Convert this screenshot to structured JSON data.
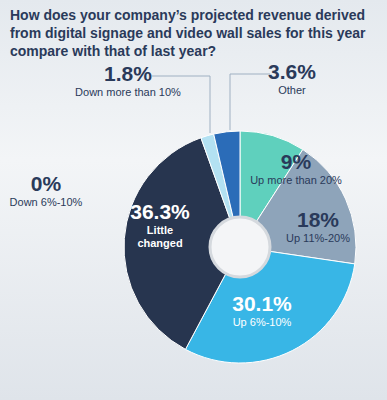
{
  "chart_data": {
    "type": "pie",
    "title": "How does your company’s projected revenue derived from digital signage and video wall sales for this year compare with that of last year?",
    "categories": [
      "Up more than 20%",
      "Up 11%-20%",
      "Up 6%-10%",
      "Little changed",
      "Down 6%-10%",
      "Down more than 10%",
      "Other"
    ],
    "values": [
      9,
      18,
      30.1,
      36.3,
      0,
      1.8,
      3.6
    ],
    "value_labels": [
      "9%",
      "18%",
      "30.1%",
      "36.3%",
      "0%",
      "1.8%",
      "3.6%"
    ],
    "colors": [
      "#5fd0bd",
      "#8ea4ba",
      "#38b6e6",
      "#27354f",
      "#c9ced6",
      "#b3e1f2",
      "#2b6cb8"
    ],
    "data_labels": true
  }
}
